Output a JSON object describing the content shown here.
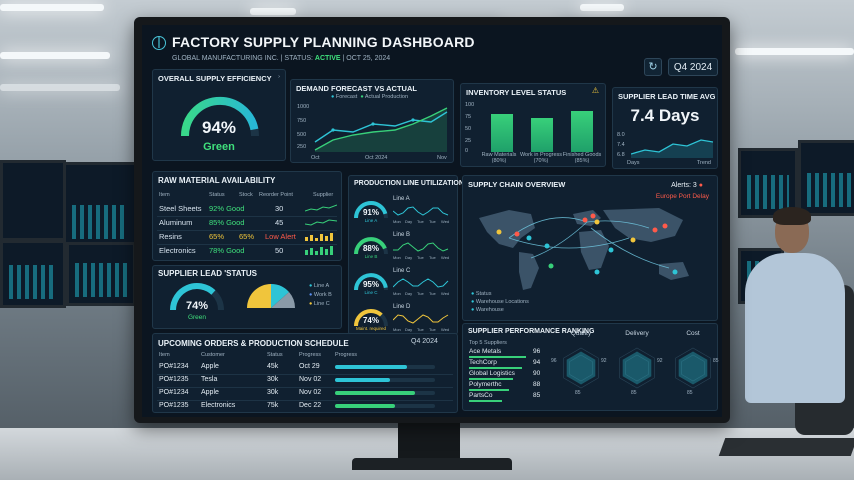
{
  "header": {
    "title": "FACTORY SUPPLY PLANNING DASHBOARD",
    "company": "GLOBAL MANUFACTURING INC.",
    "status_label": "STATUS:",
    "status_value": "ACTIVE",
    "date": "OCT 25, 2024",
    "quarter_button": "Q4 2024"
  },
  "supply_efficiency": {
    "title": "OVERALL SUPPLY EFFICIENCY",
    "value": "94%",
    "status": "Green",
    "level": 0.94
  },
  "demand_forecast": {
    "title": "DEMAND FORECAST VS ACTUAL",
    "legend": [
      "Forecast",
      "Actual Production"
    ],
    "y_ticks": [
      "1000",
      "750",
      "500",
      "250"
    ],
    "x_ticks": [
      "Oct",
      "Oct 2024",
      "Nov"
    ]
  },
  "inventory": {
    "title": "INVENTORY LEVEL STATUS",
    "bars": [
      {
        "label": "Raw Materials",
        "pct": "(80%)",
        "level": 0.8
      },
      {
        "label": "Work in Progress",
        "pct": "(70%)",
        "level": 0.7
      },
      {
        "label": "Finished Goods",
        "pct": "(85%)",
        "level": 0.85
      }
    ],
    "y_ticks": [
      "100",
      "75",
      "50",
      "25",
      "0"
    ]
  },
  "lead_time": {
    "title": "SUPPLIER LEAD TIME AVG",
    "value": "7.4 Days",
    "y_ticks": [
      "8.0",
      "7.4",
      "6.8"
    ],
    "x_label_left": "Days",
    "x_label_right": "Trend"
  },
  "raw_materials": {
    "title": "RAW MATERIAL AVAILABILITY",
    "headers": [
      "Item",
      "Status",
      "Stock",
      "Reorder Point",
      "Supplier"
    ],
    "rows": [
      {
        "item": "Steel Sheets",
        "status": "92% Good",
        "reorder": "30"
      },
      {
        "item": "Aluminum",
        "status": "85% Good",
        "reorder": "45"
      },
      {
        "item": "Resins",
        "status": "65%",
        "stock": "65%",
        "reorder": "Low Alert"
      },
      {
        "item": "Electronics",
        "status": "78% Good",
        "reorder": "50"
      }
    ]
  },
  "production": {
    "title": "PRODUCTION LINE UTILIZATION",
    "lines": [
      {
        "name": "Line A",
        "value": "91%",
        "sub": "Line A",
        "level": 0.91,
        "color": "#2ec4d6"
      },
      {
        "name": "Line B",
        "value": "88%",
        "sub": "Line B",
        "level": 0.88,
        "color": "#38d07a"
      },
      {
        "name": "Line C",
        "value": "95%",
        "sub": "Line C",
        "level": 0.95,
        "color": "#2ec4d6"
      },
      {
        "name": "Line D",
        "value": "74%",
        "sub": "Maint. required",
        "level": 0.74,
        "color": "#f0c53c"
      }
    ],
    "days": [
      "Mon",
      "Day",
      "Tue",
      "Tue",
      "Wed"
    ]
  },
  "supply_chain": {
    "title": "SUPPLY CHAIN OVERVIEW",
    "alerts_label": "Alerts: 3",
    "alert_text": "Europe Port Delay",
    "legend": [
      "Status",
      "Warehouse Locations",
      "Warehouse"
    ]
  },
  "lead_status": {
    "title": "SUPPLIER LEAD 'STATUS",
    "value": "74%",
    "status": "Green",
    "level": 0.74,
    "legend": [
      "Line A",
      "Work B",
      "Line C"
    ]
  },
  "orders": {
    "title": "UPCOMING ORDERS & PRODUCTION SCHEDULE",
    "quarter": "Q4 2024",
    "headers": [
      "Item",
      "Customer",
      "Status",
      "Progress",
      "Progress"
    ],
    "rows": [
      {
        "id": "PO#1234",
        "customer": "Apple",
        "qty": "45k",
        "date": "Oct 29",
        "progress": 0.72,
        "color": "#2ec4d6"
      },
      {
        "id": "PO#1235",
        "customer": "Tesla",
        "qty": "30k",
        "date": "Nov 02",
        "progress": 0.55,
        "color": "#2ec4d6"
      },
      {
        "id": "PO#1234",
        "customer": "Apple",
        "qty": "30k",
        "date": "Nov 02",
        "progress": 0.8,
        "color": "#38d07a"
      },
      {
        "id": "PO#1235",
        "customer": "Electronics",
        "qty": "75k",
        "date": "Dec 22",
        "progress": 0.6,
        "color": "#38d07a"
      }
    ]
  },
  "supplier_ranking": {
    "title": "SUPPLIER PERFORMANCE RANKING",
    "list_title": "Top 5 Suppliers",
    "suppliers": [
      {
        "name": "Ace Metals",
        "score": "96"
      },
      {
        "name": "TechCorp",
        "score": "94"
      },
      {
        "name": "Global Logistics",
        "score": "90"
      },
      {
        "name": "Polymerthc",
        "score": "88"
      },
      {
        "name": "PartsCo",
        "score": "85"
      }
    ],
    "radars": [
      {
        "label": "Quality",
        "left": "96",
        "right": "92",
        "bottom": "85"
      },
      {
        "label": "Delivery",
        "left": "",
        "right": "92",
        "bottom": "85"
      },
      {
        "label": "Cost",
        "left": "",
        "right": "85",
        "bottom": "85"
      }
    ]
  }
}
